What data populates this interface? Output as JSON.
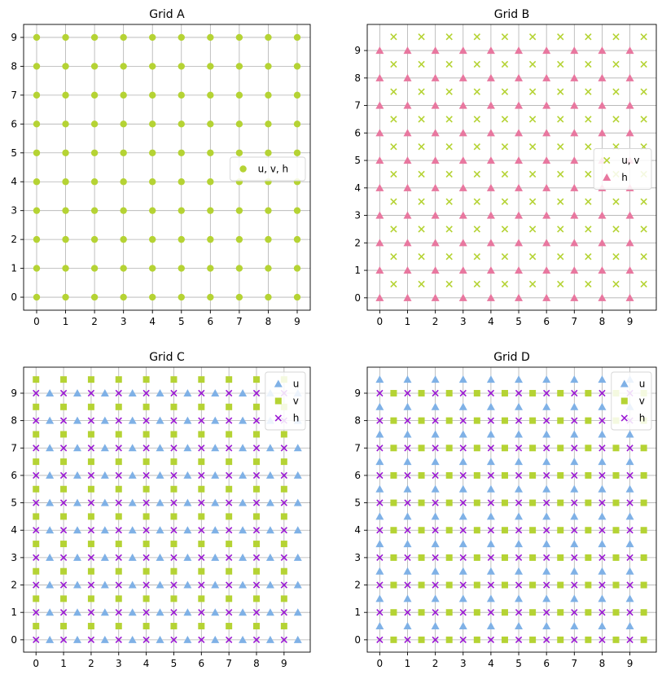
{
  "chart_data": [
    {
      "type": "scatter",
      "title": "Grid A",
      "xlabel": "",
      "ylabel": "",
      "xlim": [
        -0.45,
        9.45
      ],
      "ylim": [
        -0.45,
        9.45
      ],
      "xticks": [
        0,
        1,
        2,
        3,
        4,
        5,
        6,
        7,
        8,
        9
      ],
      "yticks": [
        0,
        1,
        2,
        3,
        4,
        5,
        6,
        7,
        8,
        9
      ],
      "grid": true,
      "legend_position": "center-right",
      "series": [
        {
          "name": "u, v, h",
          "marker": "circle",
          "color": "#b5d334",
          "x_values": [
            0,
            1,
            2,
            3,
            4,
            5,
            6,
            7,
            8,
            9
          ],
          "y_values": [
            0,
            1,
            2,
            3,
            4,
            5,
            6,
            7,
            8,
            9
          ]
        }
      ]
    },
    {
      "type": "scatter",
      "title": "Grid B",
      "xlabel": "",
      "ylabel": "",
      "xlim": [
        -0.45,
        9.95
      ],
      "ylim": [
        -0.45,
        9.95
      ],
      "xticks": [
        0,
        1,
        2,
        3,
        4,
        5,
        6,
        7,
        8,
        9
      ],
      "yticks": [
        0,
        1,
        2,
        3,
        4,
        5,
        6,
        7,
        8,
        9
      ],
      "grid": true,
      "legend_position": "center-right",
      "series": [
        {
          "name": "u, v",
          "marker": "x",
          "color": "#b5d334",
          "x_values": [
            0.5,
            1.5,
            2.5,
            3.5,
            4.5,
            5.5,
            6.5,
            7.5,
            8.5,
            9.5
          ],
          "y_values": [
            0.5,
            1.5,
            2.5,
            3.5,
            4.5,
            5.5,
            6.5,
            7.5,
            8.5,
            9.5
          ]
        },
        {
          "name": "h",
          "marker": "triangle",
          "color": "#e8779f",
          "x_values": [
            0,
            1,
            2,
            3,
            4,
            5,
            6,
            7,
            8,
            9
          ],
          "y_values": [
            0,
            1,
            2,
            3,
            4,
            5,
            6,
            7,
            8,
            9
          ]
        }
      ]
    },
    {
      "type": "scatter",
      "title": "Grid C",
      "xlabel": "",
      "ylabel": "",
      "xlim": [
        -0.45,
        9.95
      ],
      "ylim": [
        -0.45,
        9.95
      ],
      "xticks": [
        0,
        1,
        2,
        3,
        4,
        5,
        6,
        7,
        8,
        9
      ],
      "yticks": [
        0,
        1,
        2,
        3,
        4,
        5,
        6,
        7,
        8,
        9
      ],
      "grid": true,
      "legend_position": "top-right",
      "series": [
        {
          "name": "u",
          "marker": "triangle",
          "color": "#7fb1e6",
          "x_values": [
            0.5,
            1.5,
            2.5,
            3.5,
            4.5,
            5.5,
            6.5,
            7.5,
            8.5,
            9.5
          ],
          "y_values": [
            0,
            1,
            2,
            3,
            4,
            5,
            6,
            7,
            8,
            9
          ]
        },
        {
          "name": "v",
          "marker": "square",
          "color": "#b5d334",
          "x_values": [
            0,
            1,
            2,
            3,
            4,
            5,
            6,
            7,
            8,
            9
          ],
          "y_values": [
            0.5,
            1.5,
            2.5,
            3.5,
            4.5,
            5.5,
            6.5,
            7.5,
            8.5,
            9.5
          ]
        },
        {
          "name": "h",
          "marker": "x",
          "color": "#9b19d4",
          "x_values": [
            0,
            1,
            2,
            3,
            4,
            5,
            6,
            7,
            8,
            9
          ],
          "y_values": [
            0,
            1,
            2,
            3,
            4,
            5,
            6,
            7,
            8,
            9
          ]
        }
      ]
    },
    {
      "type": "scatter",
      "title": "Grid D",
      "xlabel": "",
      "ylabel": "",
      "xlim": [
        -0.45,
        9.95
      ],
      "ylim": [
        -0.45,
        9.95
      ],
      "xticks": [
        0,
        1,
        2,
        3,
        4,
        5,
        6,
        7,
        8,
        9
      ],
      "yticks": [
        0,
        1,
        2,
        3,
        4,
        5,
        6,
        7,
        8,
        9
      ],
      "grid": true,
      "legend_position": "top-right",
      "series": [
        {
          "name": "u",
          "marker": "triangle",
          "color": "#7fb1e6",
          "x_values": [
            0,
            1,
            2,
            3,
            4,
            5,
            6,
            7,
            8,
            9
          ],
          "y_values": [
            0.5,
            1.5,
            2.5,
            3.5,
            4.5,
            5.5,
            6.5,
            7.5,
            8.5,
            9.5
          ]
        },
        {
          "name": "v",
          "marker": "square",
          "color": "#b5d334",
          "x_values": [
            0.5,
            1.5,
            2.5,
            3.5,
            4.5,
            5.5,
            6.5,
            7.5,
            8.5,
            9.5
          ],
          "y_values": [
            0,
            1,
            2,
            3,
            4,
            5,
            6,
            7,
            8,
            9
          ]
        },
        {
          "name": "h",
          "marker": "x",
          "color": "#9b19d4",
          "x_values": [
            0,
            1,
            2,
            3,
            4,
            5,
            6,
            7,
            8,
            9
          ],
          "y_values": [
            0,
            1,
            2,
            3,
            4,
            5,
            6,
            7,
            8,
            9
          ]
        }
      ]
    }
  ]
}
